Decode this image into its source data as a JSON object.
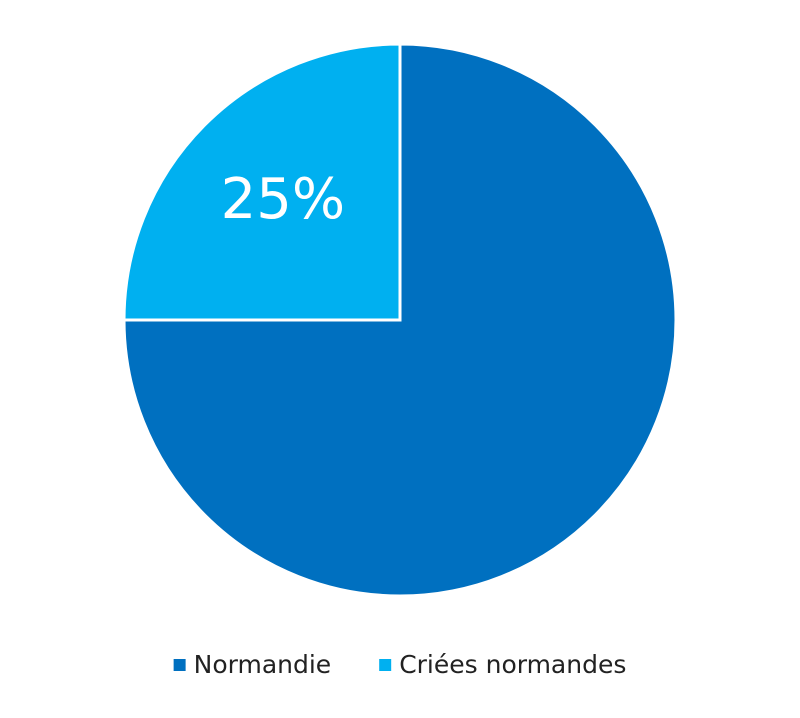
{
  "chart_data": {
    "type": "pie",
    "categories": [
      "Normandie",
      "Criées normandes"
    ],
    "values": [
      75,
      25
    ],
    "value_labels": [
      null,
      "25%"
    ],
    "colors": [
      "#0070c0",
      "#00b0f0"
    ],
    "legend": "bottom"
  }
}
